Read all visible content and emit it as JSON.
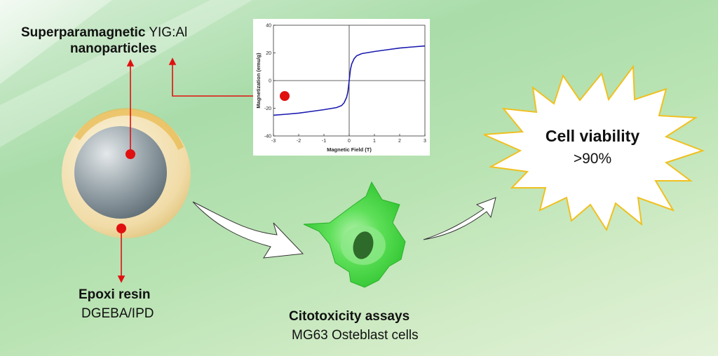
{
  "labels": {
    "nanoparticles_bold": "Superparamagnetic",
    "nanoparticles_material": "YIG:Al",
    "nanoparticles_line2": "nanoparticles",
    "resin_title": "Epoxi resin",
    "resin_subtitle": "DGEBA/IPD",
    "assay_title": "Citotoxicity assays",
    "assay_subtitle": "MG63 Osteblast cells",
    "viability_title": "Cell viability",
    "viability_value": ">90%"
  },
  "colors": {
    "marker": "#e01010",
    "curve": "#1a1ab0",
    "burst_stroke": "#f0c020",
    "cell": "#3ad63a"
  },
  "chart_data": {
    "type": "line",
    "title": "",
    "xlabel": "Magnetic Field (T)",
    "ylabel": "Magnetization (emu/g)",
    "xlim": [
      -3,
      3
    ],
    "ylim": [
      -40,
      40
    ],
    "xticks": [
      "-3",
      "-2",
      "-1",
      "0",
      "1",
      "2",
      "3"
    ],
    "yticks": [
      "-40",
      "-20",
      "0",
      "20",
      "40"
    ],
    "series": [
      {
        "name": "YIG:Al",
        "x": [
          -3,
          -2.5,
          -2,
          -1.5,
          -1,
          -0.5,
          -0.3,
          -0.2,
          -0.1,
          -0.05,
          0,
          0.05,
          0.1,
          0.2,
          0.3,
          0.5,
          1,
          1.5,
          2,
          2.5,
          3
        ],
        "y": [
          -25,
          -24.3,
          -23.5,
          -22.3,
          -21,
          -19.5,
          -18,
          -16,
          -12,
          -8,
          0,
          8,
          12,
          16,
          18,
          19.5,
          21,
          22.3,
          23.5,
          24.3,
          25
        ]
      }
    ]
  }
}
